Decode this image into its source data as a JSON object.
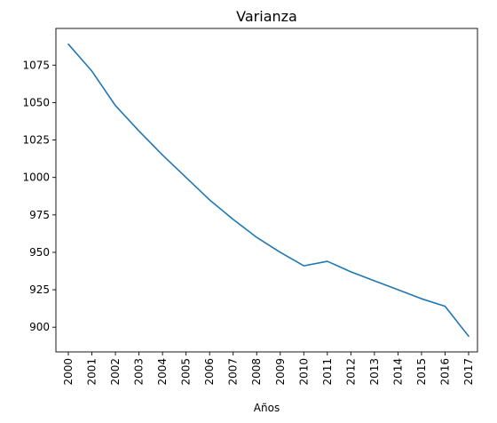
{
  "chart_data": {
    "type": "line",
    "title": "Varianza",
    "xlabel": "Años",
    "ylabel": "",
    "x": [
      "2000",
      "2001",
      "2002",
      "2003",
      "2004",
      "2005",
      "2006",
      "2007",
      "2008",
      "2009",
      "2010",
      "2011",
      "2012",
      "2013",
      "2014",
      "2015",
      "2016",
      "2017"
    ],
    "series": [
      {
        "values": [
          1089,
          1071,
          1048,
          1031,
          1015,
          1000,
          985,
          972,
          960,
          950,
          941,
          944,
          937,
          931,
          925,
          919,
          914,
          894
        ],
        "color": "#1f77b4"
      }
    ],
    "yticks": [
      900,
      925,
      950,
      975,
      1000,
      1025,
      1050,
      1075
    ],
    "ylim": [
      883.5,
      1099.5
    ],
    "grid": false
  }
}
